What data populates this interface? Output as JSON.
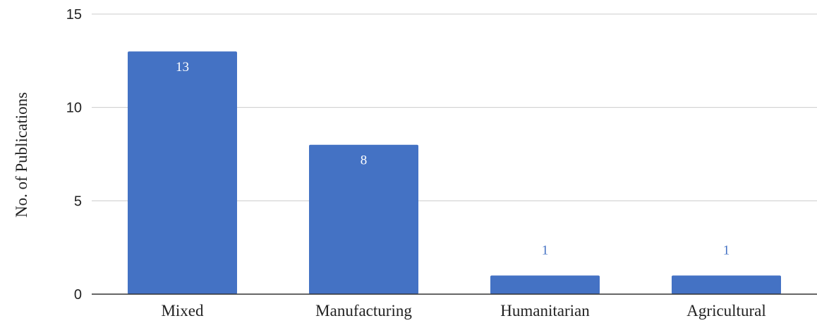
{
  "chart_data": {
    "type": "bar",
    "title": "",
    "xlabel": "",
    "ylabel": "No. of Publications",
    "categories": [
      "Mixed",
      "Manufacturing",
      "Humanitarian",
      "Agricultural"
    ],
    "values": [
      13,
      8,
      1,
      1
    ],
    "data_labels": [
      "13",
      "8",
      "1",
      "1"
    ],
    "ylim": [
      0,
      15
    ],
    "yticks": [
      0,
      5,
      10,
      15
    ],
    "ytick_labels": [
      "0",
      "5",
      "10",
      "15"
    ],
    "grid": true,
    "legend": "none",
    "colors": {
      "bar": "#4472c4",
      "label_inside": "#ffffff",
      "label_outside": "#4472c4",
      "grid": "#cccccc",
      "axis": "#333333"
    }
  }
}
